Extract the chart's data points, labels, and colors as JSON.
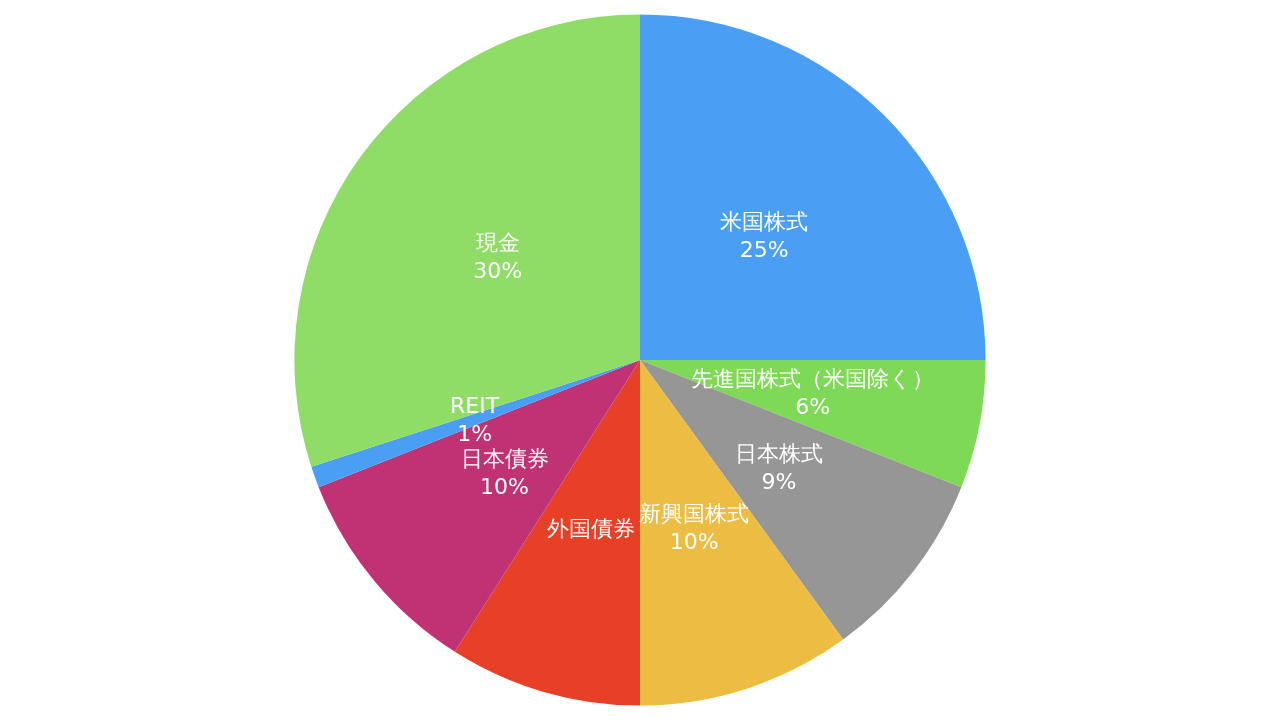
{
  "chart_data": {
    "type": "pie",
    "categories": [
      "米国株式",
      "先進国株式（米国除く）",
      "日本株式",
      "新興国株式",
      "外国債券",
      "日本債券",
      "REIT",
      "現金"
    ],
    "values": [
      25,
      6,
      9,
      10,
      9,
      10,
      1,
      30
    ],
    "colors": [
      "#4a9ff5",
      "#7ed957",
      "#969696",
      "#ecbd42",
      "#e84026",
      "#c03273",
      "#4a9ff5",
      "#8fdc66"
    ],
    "value_labels": [
      "25%",
      "6%",
      "9%",
      "10%",
      null,
      "10%",
      "1%",
      "30%"
    ],
    "legend": false
  }
}
